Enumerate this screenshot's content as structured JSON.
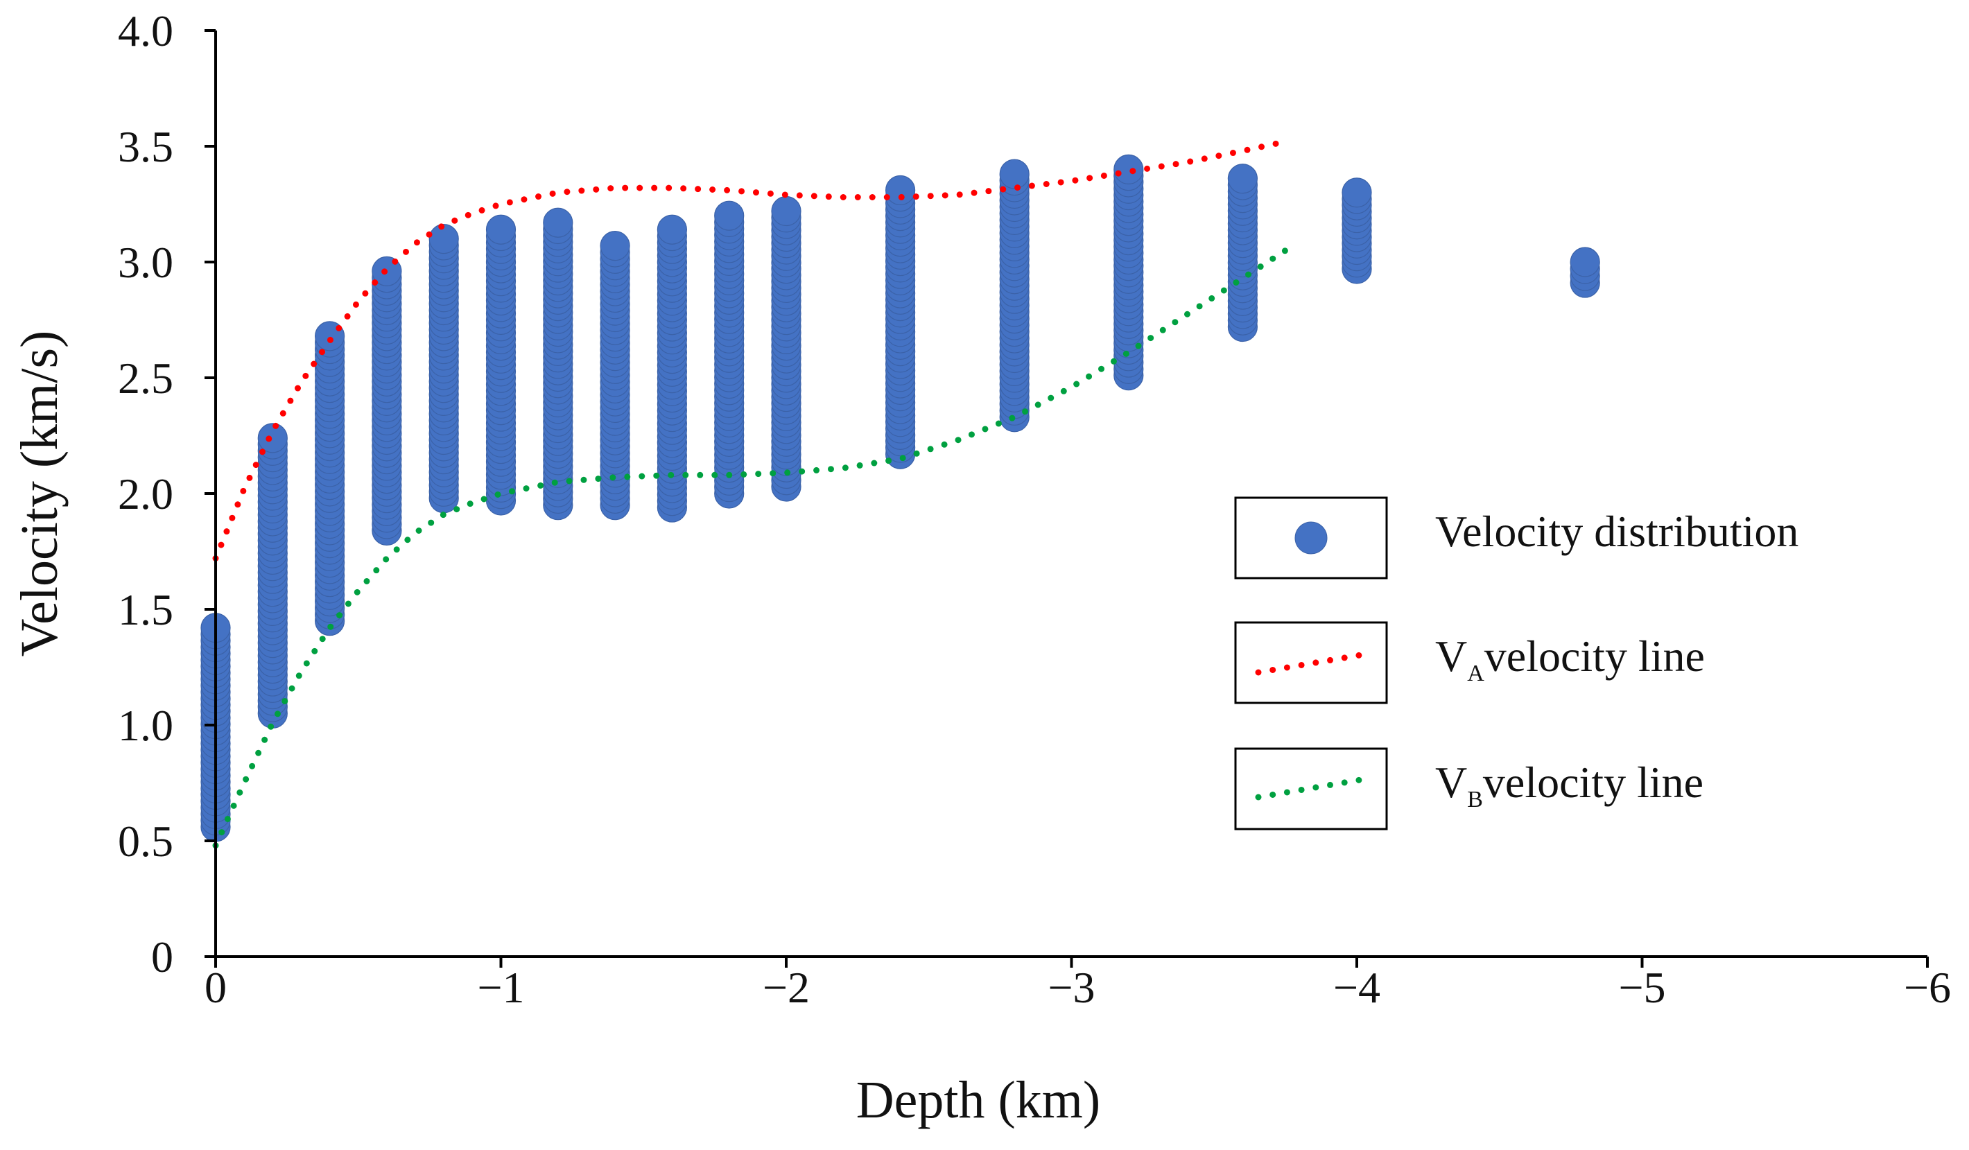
{
  "chart_data": {
    "type": "scatter",
    "title": "",
    "xlabel": "Depth (km)",
    "ylabel": "Velocity (km/s)",
    "xlim": [
      0,
      -6
    ],
    "ylim": [
      0,
      4.0
    ],
    "x_ticks": [
      0,
      -1,
      -2,
      -3,
      -4,
      -5,
      -6
    ],
    "x_tick_labels": [
      "0",
      "−1",
      "−2",
      "−3",
      "−4",
      "−5",
      "−6"
    ],
    "y_ticks": [
      0,
      0.5,
      1.0,
      1.5,
      2.0,
      2.5,
      3.0,
      3.5,
      4.0
    ],
    "y_tick_labels": [
      "0",
      "0.5",
      "1.0",
      "1.5",
      "2.0",
      "2.5",
      "3.0",
      "3.5",
      "4.0"
    ],
    "grid": false,
    "legend_position": "right",
    "legend": {
      "scatter_label": "Velocity distribution",
      "va": {
        "main": "V",
        "sub": "A",
        "rest": "velocity line"
      },
      "vb": {
        "main": "V",
        "sub": "B",
        "rest": "velocity line"
      }
    },
    "colors": {
      "scatter": "#4472C4",
      "scatter_edge": "#3B62A8",
      "va": "#FF0000",
      "vb": "#00A040",
      "axis": "#000000"
    },
    "velocity_distribution": [
      {
        "depth": 0,
        "min": 0.56,
        "max": 1.42
      },
      {
        "depth": -0.2,
        "min": 1.05,
        "max": 2.24
      },
      {
        "depth": -0.4,
        "min": 1.45,
        "max": 2.68
      },
      {
        "depth": -0.6,
        "min": 1.84,
        "max": 2.96
      },
      {
        "depth": -0.8,
        "min": 1.98,
        "max": 3.1
      },
      {
        "depth": -1.0,
        "min": 1.97,
        "max": 3.14
      },
      {
        "depth": -1.2,
        "min": 1.95,
        "max": 3.17
      },
      {
        "depth": -1.4,
        "min": 1.95,
        "max": 3.07
      },
      {
        "depth": -1.6,
        "min": 1.94,
        "max": 3.14
      },
      {
        "depth": -1.8,
        "min": 2.0,
        "max": 3.2
      },
      {
        "depth": -2.0,
        "min": 2.03,
        "max": 3.22
      },
      {
        "depth": -2.4,
        "min": 2.17,
        "max": 3.31
      },
      {
        "depth": -2.8,
        "min": 2.33,
        "max": 3.38
      },
      {
        "depth": -3.2,
        "min": 2.51,
        "max": 3.4
      },
      {
        "depth": -3.6,
        "min": 2.72,
        "max": 3.36
      },
      {
        "depth": -4.0,
        "min": 2.97,
        "max": 3.3
      },
      {
        "depth": -4.8,
        "min": 2.91,
        "max": 3.0
      }
    ],
    "series": [
      {
        "name": "VA velocity line",
        "x": [
          0,
          -0.1,
          -0.2,
          -0.3,
          -0.4,
          -0.5,
          -0.6,
          -0.7,
          -0.8,
          -0.9,
          -1.0,
          -1.2,
          -1.4,
          -1.6,
          -1.8,
          -2.0,
          -2.2,
          -2.4,
          -2.6,
          -2.8,
          -3.0,
          -3.2,
          -3.4,
          -3.6,
          -3.75
        ],
        "y": [
          1.72,
          2.02,
          2.27,
          2.48,
          2.66,
          2.83,
          2.97,
          3.08,
          3.16,
          3.21,
          3.25,
          3.3,
          3.32,
          3.32,
          3.31,
          3.29,
          3.28,
          3.28,
          3.29,
          3.32,
          3.35,
          3.39,
          3.43,
          3.48,
          3.52
        ]
      },
      {
        "name": "VB velocity line",
        "x": [
          0,
          -0.1,
          -0.2,
          -0.3,
          -0.4,
          -0.5,
          -0.6,
          -0.7,
          -0.8,
          -0.9,
          -1.0,
          -1.2,
          -1.4,
          -1.6,
          -1.8,
          -2.0,
          -2.2,
          -2.4,
          -2.6,
          -2.8,
          -3.0,
          -3.2,
          -3.4,
          -3.6,
          -3.75
        ],
        "y": [
          0.48,
          0.75,
          1.01,
          1.23,
          1.42,
          1.58,
          1.72,
          1.83,
          1.91,
          1.96,
          2.0,
          2.05,
          2.07,
          2.08,
          2.08,
          2.09,
          2.11,
          2.15,
          2.23,
          2.33,
          2.46,
          2.61,
          2.77,
          2.93,
          3.05
        ]
      }
    ]
  }
}
